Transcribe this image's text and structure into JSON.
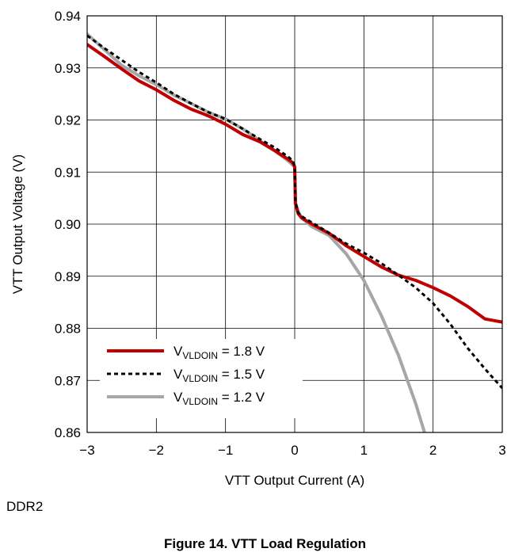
{
  "chart_data": {
    "type": "line",
    "title": "",
    "xlabel": "VTT Output Current (A)",
    "ylabel": "VTT Output Voltage (V)",
    "xlim": [
      -3,
      3
    ],
    "ylim": [
      0.86,
      0.94
    ],
    "xticks": [
      -3,
      -2,
      -1,
      0,
      1,
      2,
      3
    ],
    "xtick_labels": [
      "−3",
      "−2",
      "−1",
      "0",
      "1",
      "2",
      "3"
    ],
    "yticks": [
      0.86,
      0.87,
      0.88,
      0.89,
      0.9,
      0.91,
      0.92,
      0.93,
      0.94
    ],
    "ytick_labels": [
      "0.86",
      "0.87",
      "0.88",
      "0.89",
      "0.90",
      "0.91",
      "0.92",
      "0.93",
      "0.94"
    ],
    "grid": true,
    "legend_position": "bottom-left",
    "series": [
      {
        "name_main": "V",
        "name_sub": "VLDOIN",
        "name_rest": " = 1.8 V",
        "color": "#c00000",
        "style": "solid",
        "points": [
          [
            -3,
            0.9345
          ],
          [
            -2.75,
            0.9322
          ],
          [
            -2.5,
            0.9298
          ],
          [
            -2.25,
            0.9275
          ],
          [
            -2,
            0.9258
          ],
          [
            -1.75,
            0.9238
          ],
          [
            -1.5,
            0.9221
          ],
          [
            -1.25,
            0.9208
          ],
          [
            -1,
            0.9192
          ],
          [
            -0.75,
            0.9172
          ],
          [
            -0.5,
            0.9158
          ],
          [
            -0.3,
            0.9142
          ],
          [
            -0.1,
            0.9125
          ],
          [
            -0.03,
            0.9118
          ],
          [
            0,
            0.911
          ],
          [
            0.01,
            0.904
          ],
          [
            0.05,
            0.902
          ],
          [
            0.1,
            0.9012
          ],
          [
            0.25,
            0.9
          ],
          [
            0.5,
            0.8982
          ],
          [
            0.75,
            0.8958
          ],
          [
            1,
            0.8938
          ],
          [
            1.25,
            0.8918
          ],
          [
            1.5,
            0.8902
          ],
          [
            1.75,
            0.8892
          ],
          [
            2,
            0.8878
          ],
          [
            2.25,
            0.8862
          ],
          [
            2.5,
            0.8842
          ],
          [
            2.75,
            0.8818
          ],
          [
            3,
            0.8812
          ]
        ]
      },
      {
        "name_main": "V",
        "name_sub": "VLDOIN",
        "name_rest": " = 1.5 V",
        "color": "#000000",
        "style": "dashed",
        "points": [
          [
            -3,
            0.9362
          ],
          [
            -2.75,
            0.9338
          ],
          [
            -2.5,
            0.9315
          ],
          [
            -2.25,
            0.9292
          ],
          [
            -2,
            0.9272
          ],
          [
            -1.75,
            0.925
          ],
          [
            -1.5,
            0.9232
          ],
          [
            -1.25,
            0.9215
          ],
          [
            -1,
            0.9202
          ],
          [
            -0.75,
            0.9183
          ],
          [
            -0.5,
            0.9163
          ],
          [
            -0.3,
            0.9148
          ],
          [
            -0.1,
            0.913
          ],
          [
            -0.03,
            0.9122
          ],
          [
            0,
            0.9112
          ],
          [
            0.01,
            0.9042
          ],
          [
            0.05,
            0.9022
          ],
          [
            0.1,
            0.9015
          ],
          [
            0.25,
            0.9003
          ],
          [
            0.5,
            0.8983
          ],
          [
            0.75,
            0.8962
          ],
          [
            1,
            0.8945
          ],
          [
            1.25,
            0.8925
          ],
          [
            1.5,
            0.8902
          ],
          [
            1.75,
            0.8878
          ],
          [
            2,
            0.8848
          ],
          [
            2.25,
            0.8808
          ],
          [
            2.5,
            0.8762
          ],
          [
            2.75,
            0.8722
          ],
          [
            3,
            0.8685
          ]
        ]
      },
      {
        "name_main": "V",
        "name_sub": "VLDOIN",
        "name_rest": " = 1.2 V",
        "color": "#a6a6a6",
        "style": "solid",
        "points": [
          [
            -3,
            0.9365
          ],
          [
            -2.75,
            0.9335
          ],
          [
            -2.5,
            0.9305
          ],
          [
            -2.25,
            0.9285
          ],
          [
            -2,
            0.9268
          ],
          [
            -1.75,
            0.9248
          ],
          [
            -1.5,
            0.9232
          ],
          [
            -1.25,
            0.9215
          ],
          [
            -1,
            0.9202
          ],
          [
            -0.75,
            0.9183
          ],
          [
            -0.5,
            0.916
          ],
          [
            -0.3,
            0.9142
          ],
          [
            -0.1,
            0.9122
          ],
          [
            0,
            0.911
          ],
          [
            0.01,
            0.904
          ],
          [
            0.05,
            0.9025
          ],
          [
            0.1,
            0.9012
          ],
          [
            0.25,
            0.8995
          ],
          [
            0.5,
            0.8978
          ],
          [
            0.75,
            0.8942
          ],
          [
            1,
            0.8892
          ],
          [
            1.25,
            0.8825
          ],
          [
            1.5,
            0.8748
          ],
          [
            1.75,
            0.8655
          ],
          [
            1.88,
            0.8598
          ]
        ]
      }
    ]
  },
  "note": "DDR2",
  "caption": "Figure 14. VTT Load Regulation"
}
